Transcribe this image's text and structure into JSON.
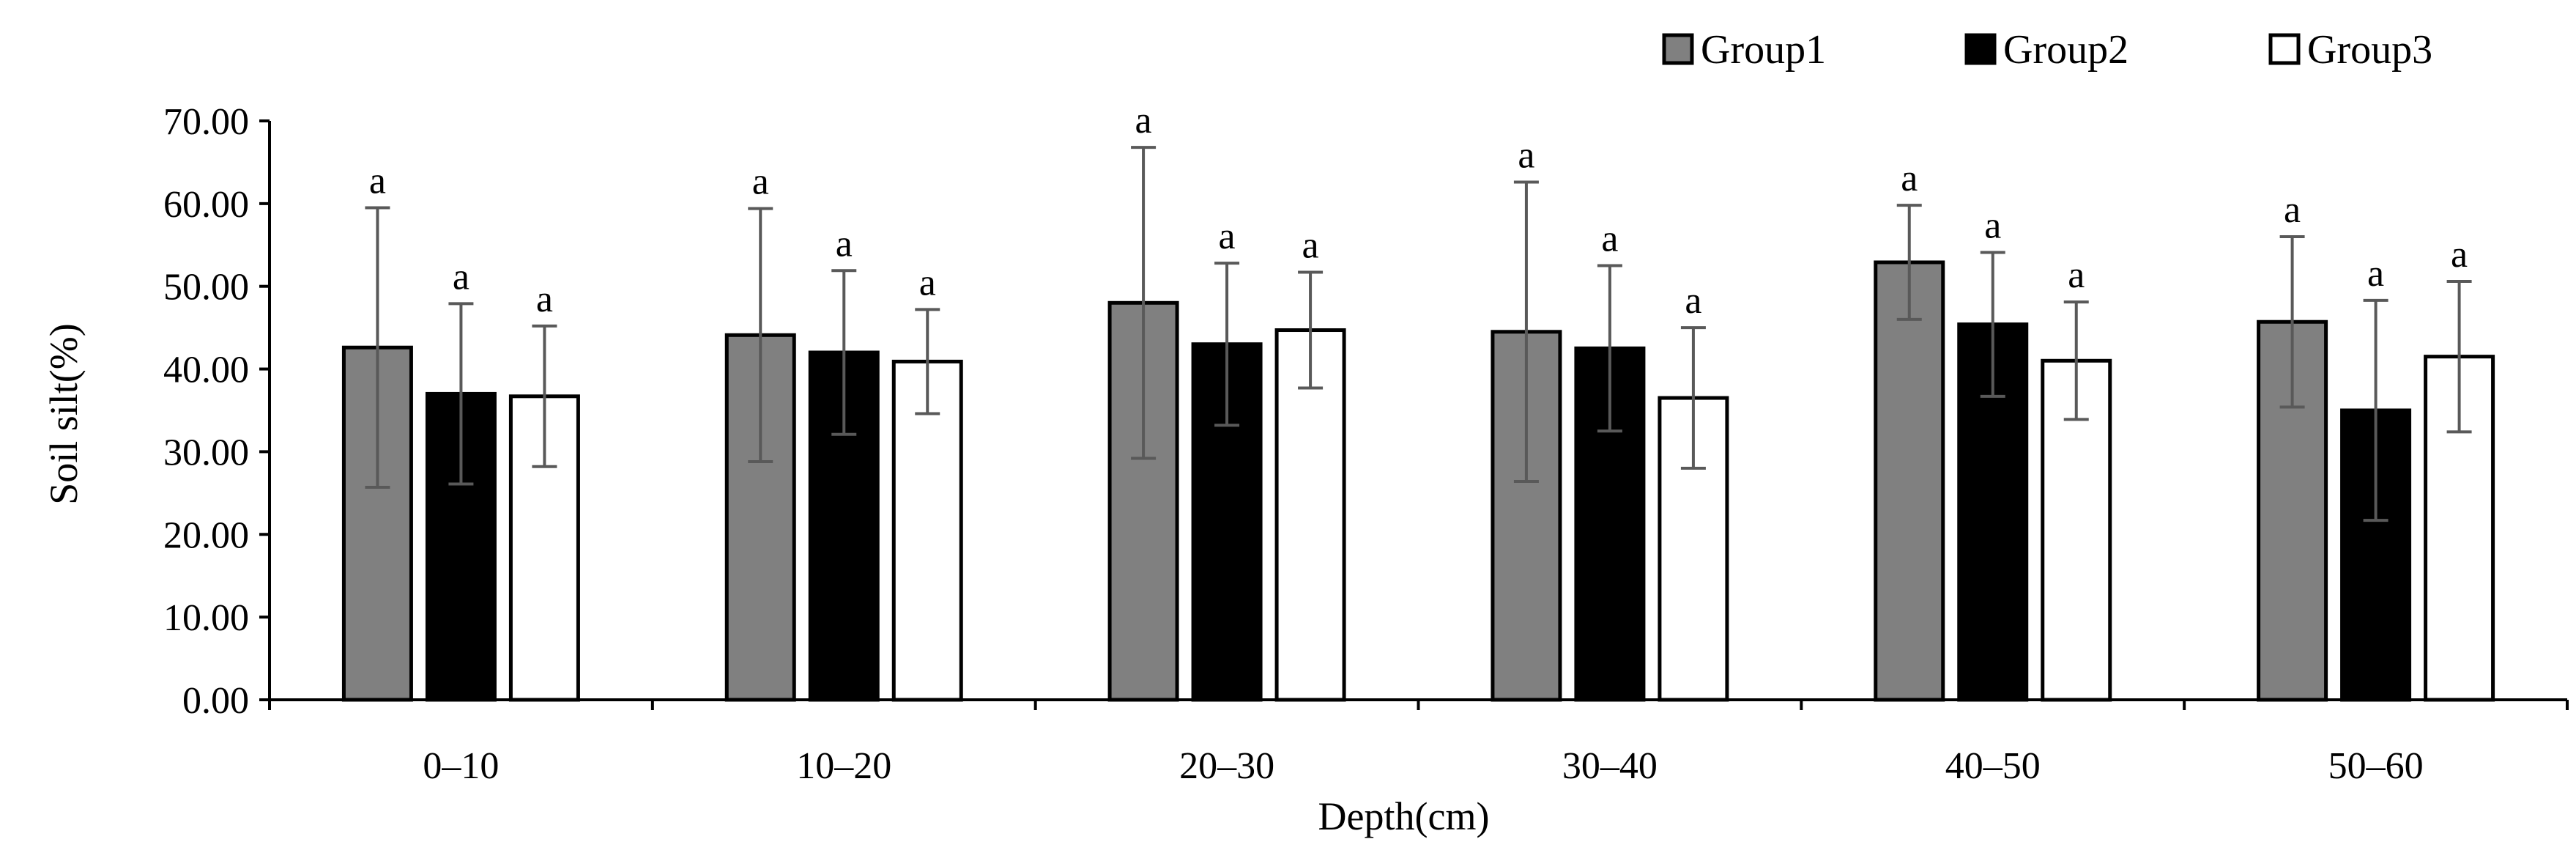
{
  "chart_data": {
    "type": "bar",
    "title": "",
    "xlabel": "Depth(cm)",
    "ylabel": "Soil silt(%)",
    "ylim": [
      0,
      70
    ],
    "ytick_step": 10,
    "ytick_labels": [
      "0.00",
      "10.00",
      "20.00",
      "30.00",
      "40.00",
      "50.00",
      "60.00",
      "70.00"
    ],
    "grid": false,
    "legend_position": "top-right",
    "categories": [
      "0–10",
      "10–20",
      "20–30",
      "30–40",
      "40–50",
      "50–60"
    ],
    "series": [
      {
        "name": "Group1",
        "color": "#808080",
        "values": [
          42.6,
          44.1,
          48.0,
          44.5,
          52.9,
          45.7
        ],
        "error": [
          16.9,
          15.3,
          18.8,
          18.1,
          6.9,
          10.3
        ],
        "labels": [
          "a",
          "a",
          "a",
          "a",
          "a",
          "a"
        ]
      },
      {
        "name": "Group2",
        "color": "#000000",
        "values": [
          37.0,
          42.0,
          43.0,
          42.5,
          45.4,
          35.0
        ],
        "error": [
          10.9,
          9.9,
          9.8,
          10.0,
          8.7,
          13.3
        ],
        "labels": [
          "a",
          "a",
          "a",
          "a",
          "a",
          "a"
        ]
      },
      {
        "name": "Group3",
        "color": "#ffffff",
        "values": [
          36.7,
          40.9,
          44.7,
          36.5,
          41.0,
          41.5
        ],
        "error": [
          8.5,
          6.3,
          7.0,
          8.5,
          7.1,
          9.1
        ],
        "labels": [
          "a",
          "a",
          "a",
          "a",
          "a",
          "a"
        ]
      }
    ]
  }
}
